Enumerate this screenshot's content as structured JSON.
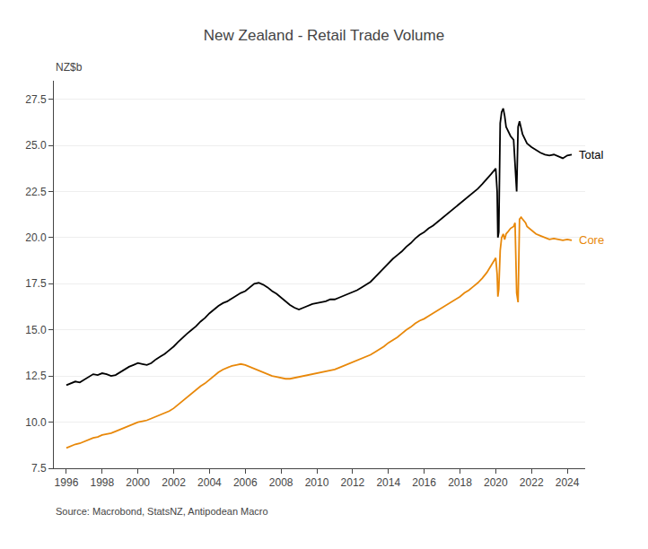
{
  "chart_data": {
    "type": "line",
    "title": "New Zealand - Retail Trade Volume",
    "ylabel": "NZ$b",
    "annotations": [
      "Source: Macrobond, StatsNZ, Antipodean Macro"
    ],
    "xlim": [
      1995.3,
      2025.0
    ],
    "xticks": [
      1996,
      1998,
      2000,
      2002,
      2004,
      2006,
      2008,
      2010,
      2012,
      2014,
      2016,
      2018,
      2020,
      2022,
      2024
    ],
    "ylim": [
      7.5,
      28.5
    ],
    "yticks": [
      7.5,
      {
        "value": 10.0,
        "label": "10.0"
      },
      12.5,
      {
        "value": 15.0,
        "label": "15.0"
      },
      17.5,
      {
        "value": 20.0,
        "label": "20.0"
      },
      22.5,
      {
        "value": 25.0,
        "label": "25.0"
      },
      27.5
    ],
    "grid": "y",
    "series": [
      {
        "name": "Total",
        "color": "#000000",
        "x": [
          1996.0,
          1996.25,
          1996.5,
          1996.75,
          1997.0,
          1997.25,
          1997.5,
          1997.75,
          1998.0,
          1998.25,
          1998.5,
          1998.75,
          1999.0,
          1999.25,
          1999.5,
          1999.75,
          2000.0,
          2000.25,
          2000.5,
          2000.75,
          2001.0,
          2001.25,
          2001.5,
          2001.75,
          2002.0,
          2002.25,
          2002.5,
          2002.75,
          2003.0,
          2003.25,
          2003.5,
          2003.75,
          2004.0,
          2004.25,
          2004.5,
          2004.75,
          2005.0,
          2005.25,
          2005.5,
          2005.75,
          2006.0,
          2006.25,
          2006.5,
          2006.75,
          2007.0,
          2007.25,
          2007.5,
          2007.75,
          2008.0,
          2008.25,
          2008.5,
          2008.75,
          2009.0,
          2009.25,
          2009.5,
          2009.75,
          2010.0,
          2010.25,
          2010.5,
          2010.75,
          2011.0,
          2011.25,
          2011.5,
          2011.75,
          2012.0,
          2012.25,
          2012.5,
          2012.75,
          2013.0,
          2013.25,
          2013.5,
          2013.75,
          2014.0,
          2014.25,
          2014.5,
          2014.75,
          2015.0,
          2015.25,
          2015.5,
          2015.75,
          2016.0,
          2016.25,
          2016.5,
          2016.75,
          2017.0,
          2017.25,
          2017.5,
          2017.75,
          2018.0,
          2018.25,
          2018.5,
          2018.75,
          2019.0,
          2019.25,
          2019.5,
          2019.75,
          2020.0,
          2020.08,
          2020.12,
          2020.17,
          2020.25,
          2020.33,
          2020.42,
          2020.5,
          2020.58,
          2020.67,
          2020.75,
          2020.83,
          2021.0,
          2021.08,
          2021.17,
          2021.25,
          2021.33,
          2021.5,
          2021.67,
          2021.75,
          2022.0,
          2022.25,
          2022.5,
          2022.75,
          2023.0,
          2023.25,
          2023.5,
          2023.75,
          2024.0,
          2024.25
        ],
        "values": [
          12.0,
          12.1,
          12.2,
          12.15,
          12.3,
          12.45,
          12.6,
          12.55,
          12.65,
          12.6,
          12.5,
          12.55,
          12.7,
          12.85,
          13.0,
          13.1,
          13.2,
          13.15,
          13.1,
          13.2,
          13.4,
          13.55,
          13.7,
          13.9,
          14.1,
          14.35,
          14.6,
          14.8,
          15.0,
          15.2,
          15.45,
          15.65,
          15.9,
          16.1,
          16.3,
          16.45,
          16.55,
          16.7,
          16.85,
          17.0,
          17.1,
          17.3,
          17.5,
          17.55,
          17.45,
          17.3,
          17.1,
          16.95,
          16.75,
          16.55,
          16.35,
          16.2,
          16.1,
          16.2,
          16.3,
          16.4,
          16.45,
          16.5,
          16.55,
          16.65,
          16.65,
          16.75,
          16.85,
          16.95,
          17.05,
          17.15,
          17.3,
          17.45,
          17.6,
          17.85,
          18.1,
          18.35,
          18.65,
          18.85,
          19.05,
          19.25,
          19.5,
          19.7,
          19.95,
          20.15,
          20.3,
          20.5,
          20.65,
          20.85,
          21.05,
          21.25,
          21.45,
          21.65,
          21.85,
          22.05,
          22.25,
          22.45,
          22.65,
          22.9,
          23.15,
          23.45,
          23.75,
          22.5,
          20.0,
          20.3,
          26.2,
          26.8,
          27.0,
          26.6,
          26.0,
          25.8,
          25.6,
          25.5,
          25.3,
          24.0,
          22.5,
          26.0,
          26.3,
          25.6,
          25.3,
          25.1,
          24.9,
          24.75,
          24.6,
          24.5,
          24.45,
          24.5,
          24.4,
          24.3,
          24.45,
          24.5
        ]
      },
      {
        "name": "Core",
        "color": "#E8880A",
        "x": [
          1996.0,
          1996.25,
          1996.5,
          1996.75,
          1997.0,
          1997.25,
          1997.5,
          1997.75,
          1998.0,
          1998.25,
          1998.5,
          1998.75,
          1999.0,
          1999.25,
          1999.5,
          1999.75,
          2000.0,
          2000.25,
          2000.5,
          2000.75,
          2001.0,
          2001.25,
          2001.5,
          2001.75,
          2002.0,
          2002.25,
          2002.5,
          2002.75,
          2003.0,
          2003.25,
          2003.5,
          2003.75,
          2004.0,
          2004.25,
          2004.5,
          2004.75,
          2005.0,
          2005.25,
          2005.5,
          2005.75,
          2006.0,
          2006.25,
          2006.5,
          2006.75,
          2007.0,
          2007.25,
          2007.5,
          2007.75,
          2008.0,
          2008.25,
          2008.5,
          2008.75,
          2009.0,
          2009.25,
          2009.5,
          2009.75,
          2010.0,
          2010.25,
          2010.5,
          2010.75,
          2011.0,
          2011.25,
          2011.5,
          2011.75,
          2012.0,
          2012.25,
          2012.5,
          2012.75,
          2013.0,
          2013.25,
          2013.5,
          2013.75,
          2014.0,
          2014.25,
          2014.5,
          2014.75,
          2015.0,
          2015.25,
          2015.5,
          2015.75,
          2016.0,
          2016.25,
          2016.5,
          2016.75,
          2017.0,
          2017.25,
          2017.5,
          2017.75,
          2018.0,
          2018.25,
          2018.5,
          2018.75,
          2019.0,
          2019.25,
          2019.5,
          2019.75,
          2020.0,
          2020.08,
          2020.12,
          2020.17,
          2020.25,
          2020.33,
          2020.42,
          2020.5,
          2020.58,
          2020.67,
          2020.75,
          2020.83,
          2021.0,
          2021.08,
          2021.17,
          2021.25,
          2021.33,
          2021.42,
          2021.5,
          2021.67,
          2021.75,
          2022.0,
          2022.25,
          2022.5,
          2022.75,
          2023.0,
          2023.25,
          2023.5,
          2023.75,
          2024.0,
          2024.25
        ],
        "values": [
          8.6,
          8.7,
          8.8,
          8.85,
          8.95,
          9.05,
          9.15,
          9.2,
          9.3,
          9.35,
          9.4,
          9.5,
          9.6,
          9.7,
          9.8,
          9.9,
          10.0,
          10.05,
          10.1,
          10.2,
          10.3,
          10.4,
          10.5,
          10.6,
          10.75,
          10.95,
          11.15,
          11.35,
          11.55,
          11.75,
          11.95,
          12.1,
          12.3,
          12.5,
          12.7,
          12.85,
          12.95,
          13.05,
          13.1,
          13.15,
          13.1,
          13.0,
          12.9,
          12.8,
          12.7,
          12.6,
          12.5,
          12.45,
          12.4,
          12.35,
          12.35,
          12.4,
          12.45,
          12.5,
          12.55,
          12.6,
          12.65,
          12.7,
          12.75,
          12.8,
          12.85,
          12.95,
          13.05,
          13.15,
          13.25,
          13.35,
          13.45,
          13.55,
          13.65,
          13.8,
          13.95,
          14.1,
          14.3,
          14.45,
          14.6,
          14.8,
          15.0,
          15.15,
          15.35,
          15.5,
          15.6,
          15.75,
          15.9,
          16.05,
          16.2,
          16.35,
          16.5,
          16.65,
          16.8,
          17.0,
          17.15,
          17.35,
          17.55,
          17.8,
          18.1,
          18.5,
          18.9,
          18.0,
          16.8,
          17.2,
          19.3,
          20.0,
          20.2,
          19.9,
          20.2,
          20.3,
          20.4,
          20.5,
          20.6,
          20.8,
          17.0,
          16.5,
          21.0,
          21.1,
          21.0,
          20.8,
          20.6,
          20.4,
          20.2,
          20.1,
          20.0,
          19.9,
          19.95,
          19.9,
          19.85,
          19.9,
          19.85
        ]
      }
    ]
  }
}
